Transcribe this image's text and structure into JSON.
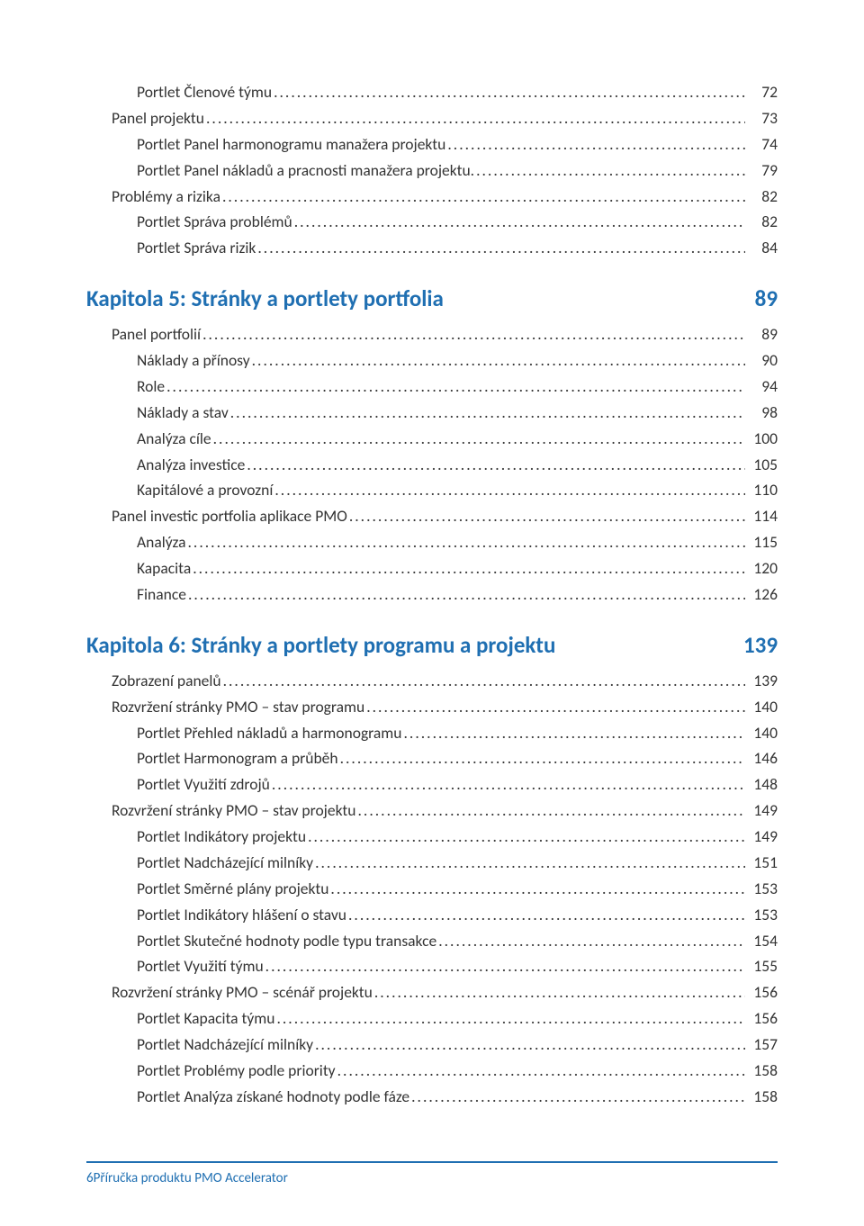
{
  "colors": {
    "text": "#333333",
    "accent": "#1f6fb2",
    "background": "#ffffff"
  },
  "typography": {
    "body_fontsize_pt": 11,
    "chapter_fontsize_pt": 16,
    "footer_fontsize_pt": 9,
    "font_family": "Calibri"
  },
  "toc": {
    "lines": [
      {
        "type": "entry",
        "indent": 2,
        "label": "Portlet Členové týmu",
        "page": "72"
      },
      {
        "type": "entry",
        "indent": 1,
        "label": "Panel projektu",
        "page": "73"
      },
      {
        "type": "entry",
        "indent": 2,
        "label": "Portlet Panel harmonogramu manažera projektu",
        "page": "74"
      },
      {
        "type": "entry",
        "indent": 2,
        "label": "Portlet Panel nákladů a pracnosti manažera projektu.",
        "page": "79"
      },
      {
        "type": "entry",
        "indent": 1,
        "label": "Problémy a rizika",
        "page": "82"
      },
      {
        "type": "entry",
        "indent": 2,
        "label": "Portlet Správa problémů",
        "page": "82"
      },
      {
        "type": "entry",
        "indent": 2,
        "label": "Portlet Správa rizik",
        "page": "84"
      },
      {
        "type": "chapter",
        "title": "Kapitola 5: Stránky a portlety portfolia",
        "page": "89"
      },
      {
        "type": "entry",
        "indent": 1,
        "label": "Panel portfolií",
        "page": "89"
      },
      {
        "type": "entry",
        "indent": 2,
        "label": "Náklady a přínosy",
        "page": "90"
      },
      {
        "type": "entry",
        "indent": 2,
        "label": "Role",
        "page": "94"
      },
      {
        "type": "entry",
        "indent": 2,
        "label": "Náklady a stav",
        "page": "98"
      },
      {
        "type": "entry",
        "indent": 2,
        "label": "Analýza cíle",
        "page": "100"
      },
      {
        "type": "entry",
        "indent": 2,
        "label": "Analýza investice",
        "page": "105"
      },
      {
        "type": "entry",
        "indent": 2,
        "label": "Kapitálové a provozní",
        "page": "110"
      },
      {
        "type": "entry",
        "indent": 1,
        "label": "Panel investic portfolia aplikace PMO",
        "page": "114"
      },
      {
        "type": "entry",
        "indent": 2,
        "label": "Analýza",
        "page": "115"
      },
      {
        "type": "entry",
        "indent": 2,
        "label": "Kapacita",
        "page": "120"
      },
      {
        "type": "entry",
        "indent": 2,
        "label": "Finance",
        "page": "126"
      },
      {
        "type": "chapter",
        "title": "Kapitola 6: Stránky a portlety programu a projektu",
        "page": "139"
      },
      {
        "type": "entry",
        "indent": 1,
        "label": "Zobrazení panelů",
        "page": "139"
      },
      {
        "type": "entry",
        "indent": 1,
        "label": "Rozvržení stránky PMO – stav programu",
        "page": "140"
      },
      {
        "type": "entry",
        "indent": 2,
        "label": "Portlet Přehled nákladů a harmonogramu",
        "page": "140"
      },
      {
        "type": "entry",
        "indent": 2,
        "label": "Portlet Harmonogram a průběh",
        "page": "146"
      },
      {
        "type": "entry",
        "indent": 2,
        "label": "Portlet Využití zdrojů",
        "page": "148"
      },
      {
        "type": "entry",
        "indent": 1,
        "label": "Rozvržení stránky PMO – stav projektu",
        "page": "149"
      },
      {
        "type": "entry",
        "indent": 2,
        "label": "Portlet Indikátory projektu",
        "page": "149"
      },
      {
        "type": "entry",
        "indent": 2,
        "label": "Portlet Nadcházející milníky",
        "page": "151"
      },
      {
        "type": "entry",
        "indent": 2,
        "label": "Portlet Směrné plány projektu",
        "page": "153"
      },
      {
        "type": "entry",
        "indent": 2,
        "label": "Portlet Indikátory hlášení o stavu",
        "page": "153"
      },
      {
        "type": "entry",
        "indent": 2,
        "label": "Portlet Skutečné hodnoty podle typu transakce",
        "page": "154"
      },
      {
        "type": "entry",
        "indent": 2,
        "label": "Portlet Využití týmu",
        "page": "155"
      },
      {
        "type": "entry",
        "indent": 1,
        "label": "Rozvržení stránky PMO – scénář projektu",
        "page": "156"
      },
      {
        "type": "entry",
        "indent": 2,
        "label": "Portlet Kapacita týmu",
        "page": "156"
      },
      {
        "type": "entry",
        "indent": 2,
        "label": "Portlet Nadcházející milníky",
        "page": "157"
      },
      {
        "type": "entry",
        "indent": 2,
        "label": "Portlet Problémy podle priority",
        "page": "158"
      },
      {
        "type": "entry",
        "indent": 2,
        "label": "Portlet Analýza získané hodnoty podle fáze",
        "page": "158"
      }
    ]
  },
  "footer": {
    "page_number": "6",
    "product": "Příručka produktu PMO Accelerator"
  }
}
